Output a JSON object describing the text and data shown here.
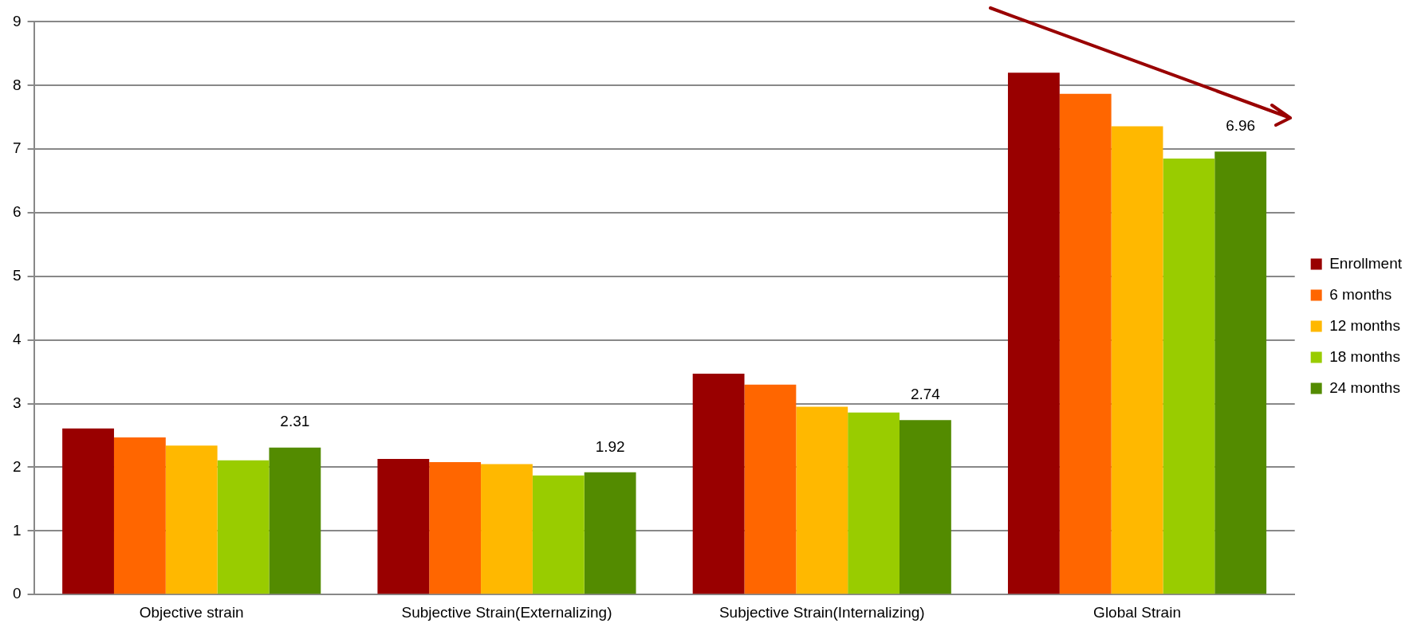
{
  "chart_data": {
    "type": "bar",
    "categories": [
      "Objective strain",
      "Subjective Strain(Externalizing)",
      "Subjective Strain(Internalizing)",
      "Global Strain"
    ],
    "series": [
      {
        "name": "Enrollment",
        "color": "#990000",
        "values": [
          2.61,
          2.13,
          3.47,
          8.2
        ]
      },
      {
        "name": "6 months",
        "color": "#ff6600",
        "values": [
          2.47,
          2.08,
          3.3,
          7.87
        ]
      },
      {
        "name": "12 months",
        "color": "#ffb800",
        "values": [
          2.34,
          2.05,
          2.95,
          7.36
        ]
      },
      {
        "name": "18 months",
        "color": "#99cc00",
        "values": [
          2.11,
          1.87,
          2.86,
          6.85
        ]
      },
      {
        "name": "24 months",
        "color": "#538b00",
        "values": [
          2.31,
          1.92,
          2.74,
          6.96
        ],
        "value_labels": [
          "2.31",
          "1.92",
          "2.74",
          "6.96"
        ]
      }
    ],
    "ylim": [
      0,
      9
    ],
    "yticks": [
      0,
      1,
      2,
      3,
      4,
      5,
      6,
      7,
      8,
      9
    ],
    "grid": "y",
    "legend": "right"
  }
}
